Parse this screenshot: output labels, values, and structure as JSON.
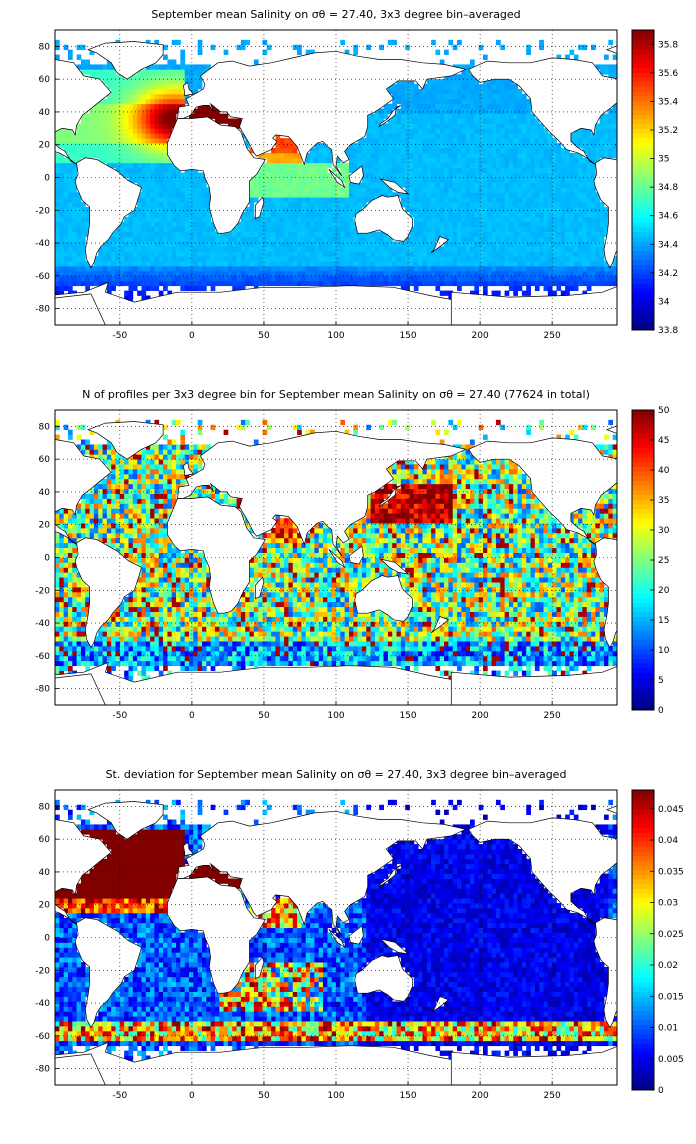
{
  "chart_data": [
    {
      "type": "heatmap",
      "title": "September mean Salinity on σθ = 27.40, 3x3 degree bin–averaged",
      "xlim": [
        -95,
        295
      ],
      "ylim": [
        -90,
        90
      ],
      "xticks": [
        -50,
        0,
        50,
        100,
        150,
        200,
        250
      ],
      "yticks": [
        -80,
        -60,
        -40,
        -20,
        0,
        20,
        40,
        60,
        80
      ],
      "colorbar": {
        "min": 33.8,
        "max": 35.9,
        "ticks": [
          33.8,
          34,
          34.2,
          34.4,
          34.6,
          34.8,
          35,
          35.2,
          35.4,
          35.6,
          35.8
        ],
        "tick_labels": [
          "33.8",
          "34",
          "34.2",
          "34.4",
          "34.6",
          "34.8",
          "35",
          "35.2",
          "35.4",
          "35.6",
          "35.8"
        ]
      },
      "colormap": "jet",
      "bin_size_deg": 3,
      "grid": true,
      "regions": [
        {
          "name": "Pacific / Southern Ocean background",
          "approx_value": 34.45
        },
        {
          "name": "Subtropical North Atlantic",
          "approx_value": 35.2
        },
        {
          "name": "North Atlantic near Gibraltar",
          "approx_value": 35.75
        },
        {
          "name": "Mediterranean Sea",
          "approx_value": 35.9
        },
        {
          "name": "Arabian Sea",
          "approx_value": 35.4
        },
        {
          "name": "Tropical Indian Ocean",
          "approx_value": 34.8
        },
        {
          "name": "Southern Ocean rim",
          "approx_value": 34.05
        }
      ]
    },
    {
      "type": "heatmap",
      "title": "N of profiles per 3x3 degree bin for September mean Salinity on σθ = 27.40 (77624 in total)",
      "xlim": [
        -95,
        295
      ],
      "ylim": [
        -90,
        90
      ],
      "xticks": [
        -50,
        0,
        50,
        100,
        150,
        200,
        250
      ],
      "yticks": [
        -80,
        -60,
        -40,
        -20,
        0,
        20,
        40,
        60,
        80
      ],
      "total_profiles": 77624,
      "colorbar": {
        "min": 0,
        "max": 50,
        "ticks": [
          0,
          5,
          10,
          15,
          20,
          25,
          30,
          35,
          40,
          45,
          50
        ],
        "tick_labels": [
          "0",
          "5",
          "10",
          "15",
          "20",
          "25",
          "30",
          "35",
          "40",
          "45",
          "50"
        ]
      },
      "colormap": "jet",
      "bin_size_deg": 3,
      "grid": true,
      "regions": [
        {
          "name": "Kuroshio / NW Pacific",
          "approx_value": 50
        },
        {
          "name": "Arabian Sea",
          "approx_value": 45
        },
        {
          "name": "Open ocean typical",
          "approx_value": 20
        },
        {
          "name": "Southern Ocean",
          "approx_value": 12
        }
      ]
    },
    {
      "type": "heatmap",
      "title": "St. deviation for September mean Salinity on σθ = 27.40, 3x3 degree bin–averaged",
      "xlim": [
        -95,
        295
      ],
      "ylim": [
        -90,
        90
      ],
      "xticks": [
        -50,
        0,
        50,
        100,
        150,
        200,
        250
      ],
      "yticks": [
        -80,
        -60,
        -40,
        -20,
        0,
        20,
        40,
        60,
        80
      ],
      "colorbar": {
        "min": 0,
        "max": 0.048,
        "ticks": [
          0,
          0.005,
          0.01,
          0.015,
          0.02,
          0.025,
          0.03,
          0.035,
          0.04,
          0.045
        ],
        "tick_labels": [
          "0",
          "0.005",
          "0.01",
          "0.015",
          "0.02",
          "0.025",
          "0.03",
          "0.035",
          "0.04",
          "0.045"
        ]
      },
      "colormap": "jet",
      "bin_size_deg": 3,
      "grid": true,
      "regions": [
        {
          "name": "North Atlantic",
          "approx_value": 0.048
        },
        {
          "name": "Mediterranean Sea",
          "approx_value": 0.048
        },
        {
          "name": "Pacific interior",
          "approx_value": 0.005
        },
        {
          "name": "Agulhas / Indian Ocean",
          "approx_value": 0.03
        },
        {
          "name": "Southern Ocean front ~55S",
          "approx_value": 0.04
        }
      ]
    }
  ]
}
